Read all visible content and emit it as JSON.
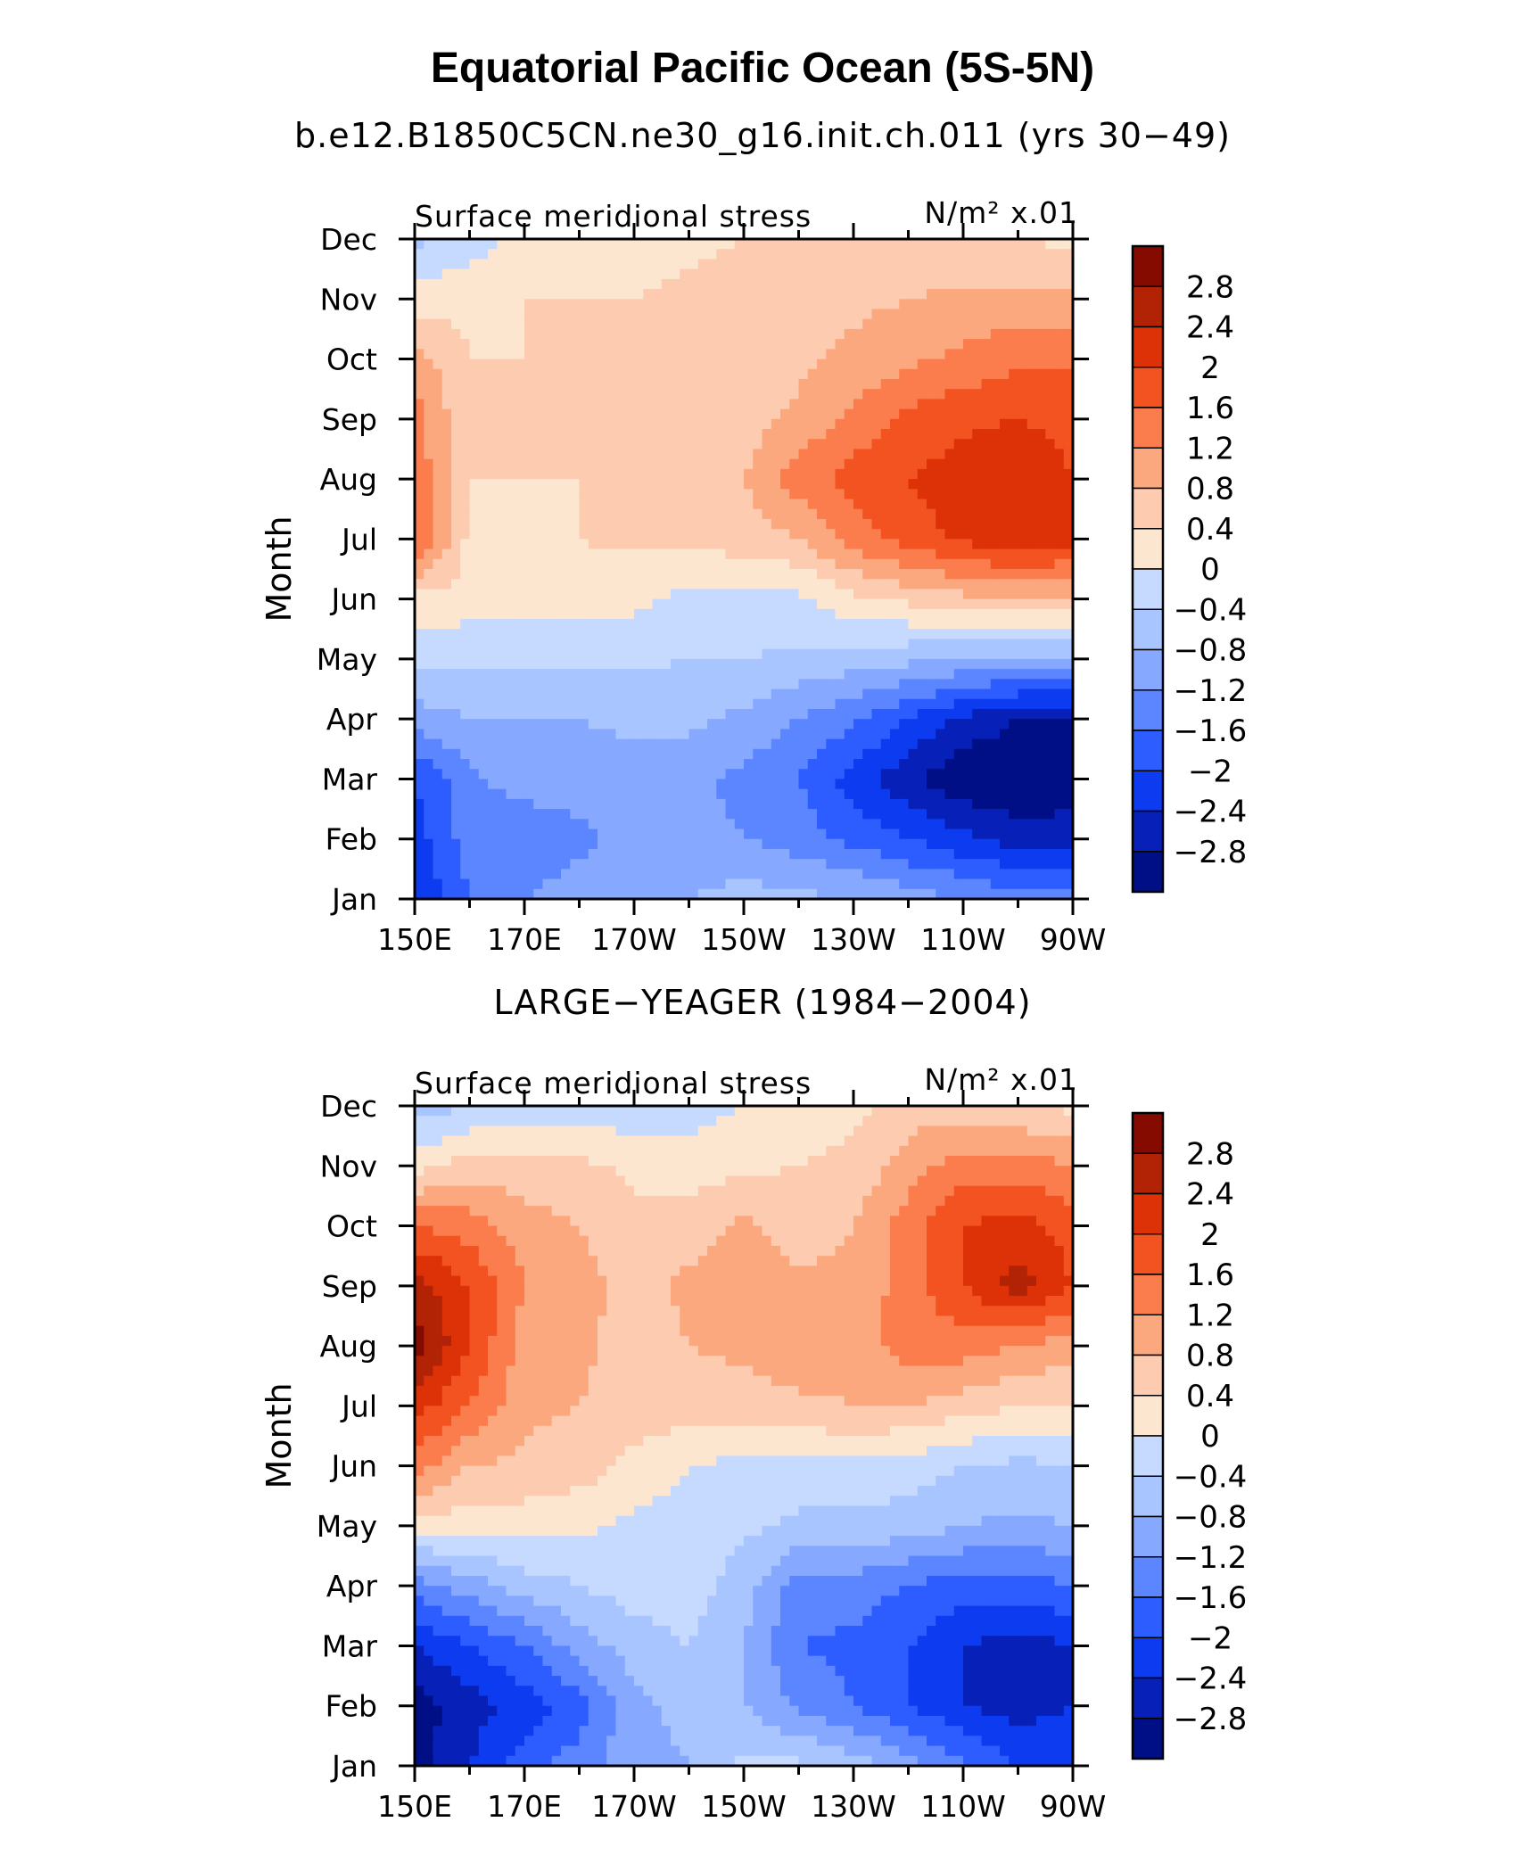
{
  "title": "Equatorial Pacific Ocean (5S-5N)",
  "chart_data": [
    {
      "type": "heatmap",
      "subtitle": "b.e12.B1850C5CN.ne30_g16.init.ch.011 (yrs 30−49)",
      "left_label": "Surface meridional stress",
      "units": "N/m² x.01",
      "ylabel": "Month",
      "x_ticks": [
        "150E",
        "170E",
        "170W",
        "150W",
        "130W",
        "110W",
        "90W"
      ],
      "y_ticks": [
        "Jan",
        "Feb",
        "Mar",
        "Apr",
        "May",
        "Jun",
        "Jul",
        "Aug",
        "Sep",
        "Oct",
        "Nov",
        "Dec"
      ],
      "x_longitudes_deg_east": [
        150,
        160,
        170,
        180,
        190,
        200,
        210,
        220,
        230,
        240,
        250,
        260,
        270
      ],
      "levels": [
        "2.8",
        "2.4",
        "2",
        "1.6",
        "1.2",
        "0.8",
        "0.4",
        "0",
        "−0.4",
        "−0.8",
        "−1.2",
        "−1.6",
        "−2",
        "−2.4",
        "−2.8"
      ],
      "values": [
        [
          -2.4,
          -1.6,
          -1.2,
          -1.0,
          -0.9,
          -0.8,
          -0.6,
          -0.7,
          -0.8,
          -1.0,
          -1.2,
          -1.4,
          -1.4
        ],
        [
          -2.2,
          -1.4,
          -1.5,
          -1.3,
          -1.1,
          -1.1,
          -1.2,
          -1.4,
          -1.7,
          -2.0,
          -2.3,
          -2.6,
          -2.6
        ],
        [
          -2.0,
          -1.3,
          -1.0,
          -1.0,
          -1.0,
          -1.1,
          -1.3,
          -1.6,
          -2.2,
          -2.7,
          -3.1,
          -3.2,
          -3.0
        ],
        [
          -1.0,
          -0.8,
          -0.8,
          -0.8,
          -0.7,
          -0.7,
          -0.9,
          -1.2,
          -1.5,
          -2.0,
          -2.5,
          -2.8,
          -2.8
        ],
        [
          -0.3,
          -0.3,
          -0.3,
          -0.3,
          -0.3,
          -0.4,
          -0.4,
          -0.5,
          -0.6,
          -0.7,
          -0.8,
          -0.9,
          -0.9
        ],
        [
          0.3,
          0.2,
          0.1,
          0.2,
          0.1,
          -0.1,
          -0.1,
          -0.1,
          0.3,
          0.5,
          0.7,
          0.8,
          0.8
        ],
        [
          1.7,
          0.3,
          0.3,
          0.4,
          0.5,
          0.5,
          0.6,
          0.8,
          1.4,
          1.8,
          2.1,
          2.3,
          2.1
        ],
        [
          1.5,
          0.4,
          0.4,
          0.4,
          0.4,
          0.4,
          0.8,
          1.4,
          1.8,
          2.0,
          2.2,
          2.3,
          2.0
        ],
        [
          1.4,
          0.4,
          0.4,
          0.4,
          0.4,
          0.4,
          0.6,
          0.9,
          1.3,
          1.7,
          1.9,
          2.0,
          1.9
        ],
        [
          1.0,
          0.4,
          0.4,
          0.4,
          0.4,
          0.4,
          0.5,
          0.7,
          0.9,
          1.1,
          1.3,
          1.5,
          1.5
        ],
        [
          0.2,
          0.3,
          0.4,
          0.4,
          0.4,
          0.5,
          0.6,
          0.6,
          0.7,
          0.8,
          0.9,
          0.9,
          0.9
        ],
        [
          -0.5,
          -0.2,
          0.1,
          0.2,
          0.2,
          0.3,
          0.4,
          0.4,
          0.4,
          0.4,
          0.4,
          0.4,
          0.3
        ]
      ]
    },
    {
      "type": "heatmap",
      "subtitle": "LARGE−YEAGER (1984−2004)",
      "left_label": "Surface meridional stress",
      "units": "N/m² x.01",
      "ylabel": "Month",
      "x_ticks": [
        "150E",
        "170E",
        "170W",
        "150W",
        "130W",
        "110W",
        "90W"
      ],
      "y_ticks": [
        "Jan",
        "Feb",
        "Mar",
        "Apr",
        "May",
        "Jun",
        "Jul",
        "Aug",
        "Sep",
        "Oct",
        "Nov",
        "Dec"
      ],
      "x_longitudes_deg_east": [
        150,
        160,
        170,
        180,
        190,
        200,
        210,
        220,
        230,
        240,
        250,
        260,
        270
      ],
      "levels": [
        "2.8",
        "2.4",
        "2",
        "1.6",
        "1.2",
        "0.8",
        "0.4",
        "0",
        "−0.4",
        "−0.8",
        "−1.2",
        "−1.6",
        "−2",
        "−2.4",
        "−2.8"
      ],
      "values": [
        [
          -3.0,
          -2.4,
          -1.8,
          -1.4,
          -0.9,
          -0.8,
          -0.3,
          -0.3,
          -0.6,
          -1.0,
          -1.5,
          -2.0,
          -2.0
        ],
        [
          -3.0,
          -2.6,
          -2.2,
          -1.8,
          -0.9,
          -0.7,
          -0.8,
          -1.3,
          -1.6,
          -2.0,
          -2.4,
          -2.6,
          -2.4
        ],
        [
          -2.4,
          -2.0,
          -1.6,
          -1.0,
          -0.6,
          -0.4,
          -0.8,
          -1.6,
          -1.7,
          -2.0,
          -2.4,
          -2.6,
          -2.4
        ],
        [
          -1.4,
          -1.0,
          -0.6,
          -0.4,
          -0.2,
          -0.2,
          -0.6,
          -1.4,
          -1.4,
          -1.6,
          -1.8,
          -1.8,
          -1.6
        ],
        [
          0.2,
          0.2,
          0.2,
          0.1,
          -0.1,
          -0.2,
          -0.3,
          -0.5,
          -0.5,
          -0.6,
          -0.8,
          -0.9,
          -0.8
        ],
        [
          1.4,
          0.8,
          0.7,
          0.6,
          0.3,
          0.0,
          -0.1,
          -0.1,
          -0.1,
          -0.2,
          -0.4,
          -0.5,
          -0.4
        ],
        [
          2.2,
          1.6,
          0.9,
          0.8,
          0.6,
          0.6,
          0.6,
          0.7,
          0.8,
          0.8,
          0.6,
          0.4,
          0.4
        ],
        [
          3.0,
          2.0,
          1.0,
          0.9,
          0.6,
          0.8,
          0.9,
          1.1,
          1.0,
          1.4,
          1.4,
          1.2,
          1.0
        ],
        [
          2.6,
          2.0,
          1.2,
          1.0,
          0.6,
          0.9,
          1.0,
          0.9,
          0.9,
          1.4,
          2.0,
          2.6,
          2.0
        ],
        [
          1.6,
          1.4,
          1.0,
          0.8,
          0.5,
          0.6,
          0.9,
          0.6,
          0.8,
          1.4,
          2.0,
          2.2,
          1.8
        ],
        [
          0.2,
          0.6,
          0.5,
          0.5,
          0.3,
          0.2,
          0.3,
          0.4,
          0.5,
          1.0,
          1.4,
          1.4,
          1.2
        ],
        [
          -0.6,
          -0.4,
          -0.2,
          -0.2,
          -0.3,
          -0.2,
          0.0,
          0.2,
          0.3,
          0.6,
          0.6,
          0.4,
          0.3
        ]
      ]
    }
  ]
}
